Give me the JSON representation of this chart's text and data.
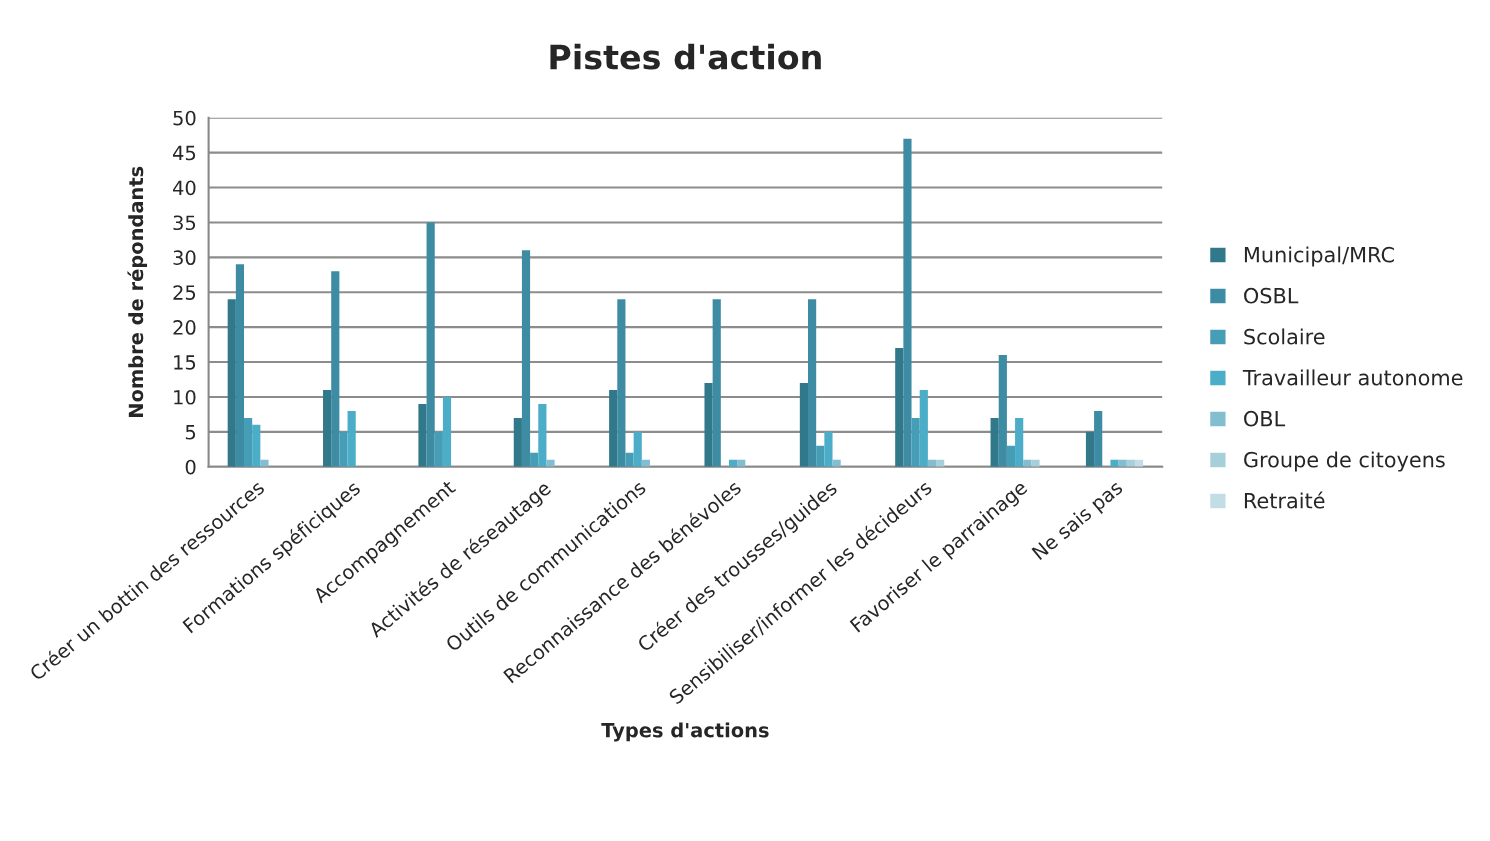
{
  "chart_data": {
    "type": "bar",
    "title": "Pistes d'action",
    "xlabel": "Types d'actions",
    "ylabel": "Nombre de répondants",
    "categories": [
      "Créer un bottin des ressources",
      "Formations spéficiques",
      "Accompagnement",
      "Activités de réseautage",
      "Outils de communications",
      "Reconnaissance des bénévoles",
      "Créer des trousses/guides",
      "Sensibiliser/informer les décideurs",
      "Favoriser le parrainage",
      "Ne sais pas"
    ],
    "series": [
      {
        "name": "Municipal/MRC",
        "color": "#31788a",
        "values": [
          24,
          11,
          9,
          7,
          11,
          12,
          12,
          17,
          7,
          5
        ]
      },
      {
        "name": "OSBL",
        "color": "#3d8ca4",
        "values": [
          29,
          28,
          35,
          31,
          24,
          24,
          24,
          47,
          16,
          8
        ]
      },
      {
        "name": "Scolaire",
        "color": "#469eb6",
        "values": [
          7,
          5,
          5,
          2,
          2,
          null,
          3,
          7,
          3,
          null
        ]
      },
      {
        "name": "Travailleur autonome",
        "color": "#4badc7",
        "values": [
          6,
          8,
          10,
          9,
          5,
          1,
          5,
          11,
          7,
          1
        ]
      },
      {
        "name": "OBL",
        "color": "#82bdd0",
        "values": [
          1,
          null,
          null,
          1,
          1,
          1,
          1,
          1,
          1,
          1
        ]
      },
      {
        "name": "Groupe de citoyens",
        "color": "#a6cfdc",
        "values": [
          null,
          null,
          null,
          null,
          null,
          null,
          null,
          1,
          1,
          1
        ]
      },
      {
        "name": "Retraité",
        "color": "#c3dde6",
        "values": [
          null,
          null,
          null,
          null,
          null,
          null,
          null,
          null,
          null,
          1
        ]
      }
    ],
    "ylim": [
      0,
      50
    ],
    "yticks": [
      0,
      5,
      10,
      15,
      20,
      25,
      30,
      35,
      40,
      45,
      50
    ],
    "grid": "y",
    "legend": "right"
  }
}
